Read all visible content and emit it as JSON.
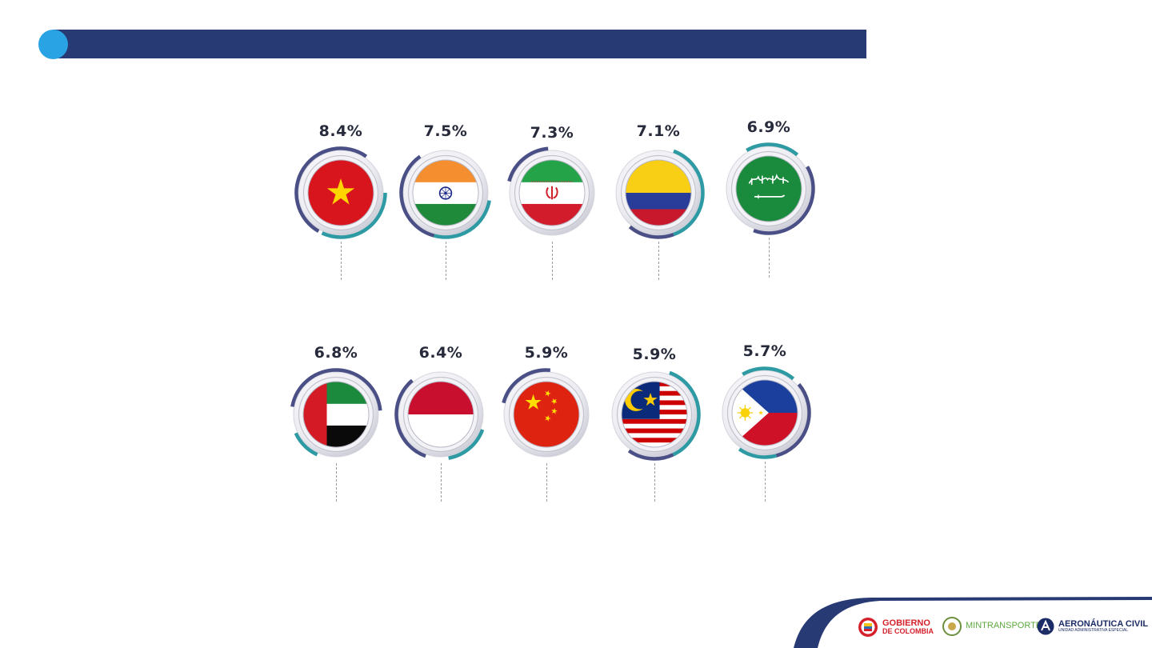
{
  "countries": [
    {
      "name": "vietnam",
      "flag_icon": "vietnam-flag-icon",
      "pct": "8.4%"
    },
    {
      "name": "india",
      "flag_icon": "india-flag-icon",
      "pct": "7.5%"
    },
    {
      "name": "iran",
      "flag_icon": "iran-flag-icon",
      "pct": "7.3%"
    },
    {
      "name": "colombia",
      "flag_icon": "colombia-flag-icon",
      "pct": "7.1%"
    },
    {
      "name": "saudi-arabia",
      "flag_icon": "saudi-arabia-flag-icon",
      "pct": "6.9%"
    },
    {
      "name": "uae",
      "flag_icon": "uae-flag-icon",
      "pct": "6.8%"
    },
    {
      "name": "indonesia",
      "flag_icon": "indonesia-flag-icon",
      "pct": "6.4%"
    },
    {
      "name": "china",
      "flag_icon": "china-flag-icon",
      "pct": "5.9%"
    },
    {
      "name": "malaysia",
      "flag_icon": "malaysia-flag-icon",
      "pct": "5.9%"
    },
    {
      "name": "philippines",
      "flag_icon": "philippines-flag-icon",
      "pct": "5.7%"
    }
  ],
  "footer": {
    "gobierno_line1": "GOBIERNO",
    "gobierno_line2": "DE COLOMBIA",
    "mintransporte": "MINTRANSPORTE",
    "aero_line1": "AERONÁUTICA CIVIL",
    "aero_line2": "UNIDAD ADMINISTRATIVA ESPECIAL"
  },
  "colors": {
    "title_bar": "#273a73",
    "bullet": "#29a3e3",
    "ring_dark": "#4a4f86",
    "ring_teal": "#2e9aa3"
  }
}
